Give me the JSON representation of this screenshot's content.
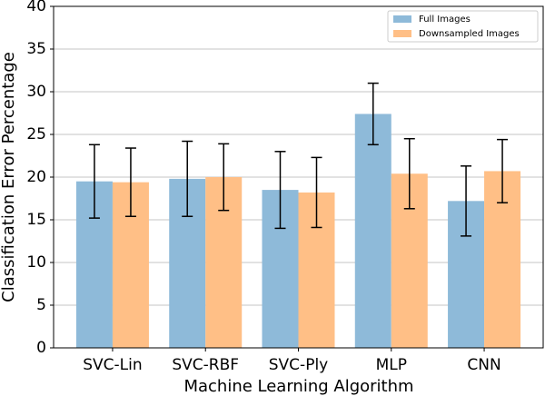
{
  "chart_data": {
    "type": "bar",
    "x_label": "Machine Learning Algorithm",
    "y_label": "Classification Error Percentage",
    "categories": [
      "SVC-Lin",
      "SVC-RBF",
      "SVC-Ply",
      "MLP",
      "CNN"
    ],
    "series": [
      {
        "name": "Full Images",
        "color": "#8ebad9",
        "values": [
          19.5,
          19.8,
          18.5,
          27.4,
          17.2
        ],
        "errors": [
          4.3,
          4.4,
          4.5,
          3.6,
          4.1
        ]
      },
      {
        "name": "Downsampled Images",
        "color": "#ffbf86",
        "values": [
          19.4,
          20.0,
          18.2,
          20.4,
          20.7
        ],
        "errors": [
          4.0,
          3.9,
          4.1,
          4.1,
          3.7
        ]
      }
    ],
    "ylim": [
      0,
      40
    ],
    "yticks": [
      0,
      5,
      10,
      15,
      20,
      25,
      30,
      35,
      40
    ],
    "grid": true,
    "legend": "upper right"
  }
}
